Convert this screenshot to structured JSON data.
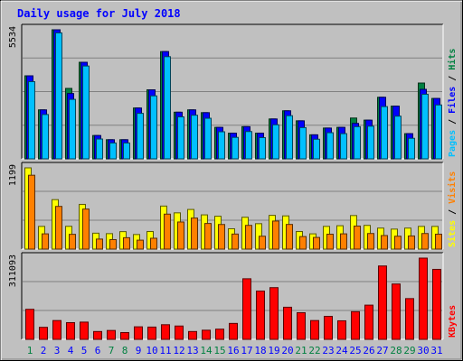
{
  "title": "Daily usage for July 2018",
  "colors": {
    "background": "#c0c0c0",
    "title_text": "#0000ff",
    "hits": "#008040",
    "files": "#0000ff",
    "pages": "#00c0ff",
    "visits": "#ff8000",
    "sites": "#ffff00",
    "kbytes": "#ff0000",
    "weekend_day_label": "#008040",
    "weekday_label": "#0000ff"
  },
  "chart_data": {
    "type": "bar",
    "days": [
      "1",
      "2",
      "3",
      "4",
      "5",
      "6",
      "7",
      "8",
      "9",
      "10",
      "11",
      "12",
      "13",
      "14",
      "15",
      "16",
      "17",
      "18",
      "19",
      "20",
      "21",
      "22",
      "23",
      "24",
      "25",
      "26",
      "27",
      "28",
      "29",
      "30",
      "31"
    ],
    "weekend_days": [
      "1",
      "7",
      "8",
      "14",
      "15",
      "21",
      "22",
      "28",
      "29"
    ],
    "panels": [
      {
        "name": "hits-files-pages",
        "max_label": "5534",
        "max": 5534,
        "legend": [
          {
            "text": "Hits",
            "color": "#008040"
          },
          {
            "text": "Files",
            "color": "#0000ff"
          },
          {
            "text": "Pages",
            "color": "#00c0ff"
          }
        ],
        "series": [
          {
            "name": "Hits",
            "values": [
              3560,
              2100,
              5534,
              3020,
              4140,
              1000,
              820,
              820,
              2180,
              2960,
              4600,
              2000,
              2100,
              1980,
              1350,
              1100,
              1380,
              1100,
              1710,
              2060,
              1630,
              1030,
              1320,
              1350,
              1750,
              1660,
              2640,
              2260,
              1080,
              3250,
              2590
            ]
          },
          {
            "name": "Files",
            "values": [
              3560,
              2100,
              5534,
              2800,
              4140,
              1000,
              820,
              820,
              2180,
              2960,
              4600,
              2000,
              2100,
              1980,
              1350,
              1100,
              1380,
              1100,
              1710,
              2060,
              1630,
              1030,
              1320,
              1350,
              1520,
              1660,
              2640,
              2260,
              1080,
              2980,
              2590
            ]
          },
          {
            "name": "Pages",
            "values": [
              3310,
              1900,
              5400,
              2550,
              3980,
              850,
              680,
              680,
              1950,
              2700,
              4380,
              1800,
              1870,
              1740,
              1160,
              920,
              1170,
              910,
              1460,
              1850,
              1340,
              840,
              1120,
              1080,
              1380,
              1400,
              2240,
              1830,
              880,
              2770,
              2310
            ]
          }
        ]
      },
      {
        "name": "visits-sites",
        "max_label": "1199",
        "max": 1199,
        "legend": [
          {
            "text": "Visits",
            "color": "#ff8000"
          },
          {
            "text": "Sites",
            "color": "#ffff00"
          }
        ],
        "series": [
          {
            "name": "Sites",
            "values": [
              1199,
              335,
              730,
              336,
              660,
              235,
              228,
              258,
              215,
              260,
              635,
              535,
              585,
              505,
              485,
              300,
              470,
              375,
              498,
              490,
              260,
              225,
              335,
              345,
              495,
              350,
              310,
              295,
              310,
              335,
              335
            ]
          },
          {
            "name": "Visits",
            "values": [
              1090,
              225,
              630,
              218,
              591,
              148,
              140,
              168,
              132,
              160,
              516,
              400,
              458,
              378,
              363,
              222,
              350,
              190,
              414,
              364,
              185,
              172,
              220,
              225,
              340,
              230,
              200,
              190,
              194,
              230,
              220
            ]
          }
        ]
      },
      {
        "name": "kbytes",
        "max_label": "311093",
        "max": 311093,
        "legend": [
          {
            "text": "KBytes",
            "color": "#ff0000"
          }
        ],
        "series": [
          {
            "name": "KBytes",
            "values": [
              115000,
              46000,
              72000,
              64000,
              66000,
              30000,
              34000,
              26000,
              48000,
              47000,
              56000,
              51000,
              30000,
              35000,
              39000,
              61000,
              232000,
              185000,
              198000,
              123000,
              102000,
              72000,
              88000,
              71000,
              106000,
              131000,
              281000,
              212000,
              156000,
              311093,
              268000
            ]
          }
        ]
      }
    ]
  }
}
